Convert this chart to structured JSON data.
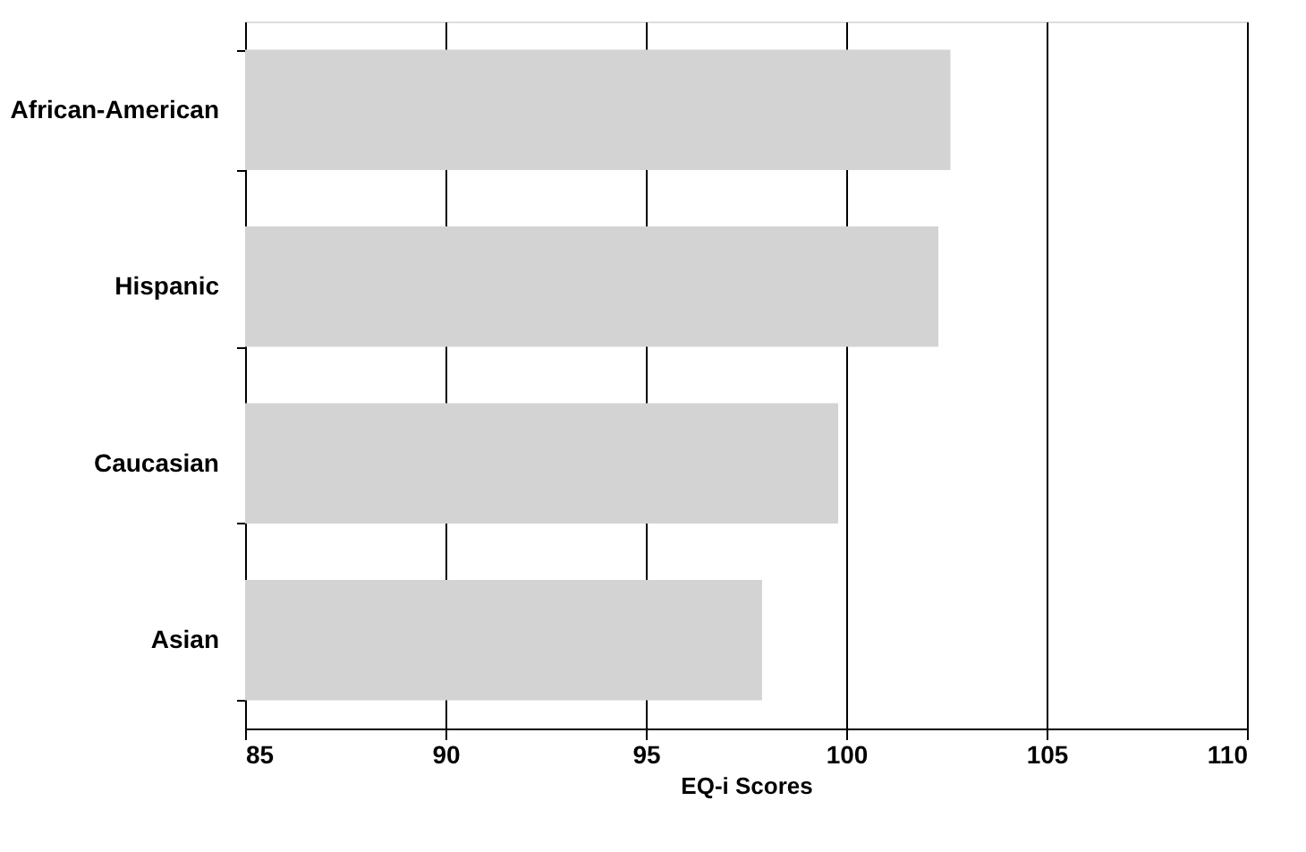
{
  "chart_data": {
    "type": "bar",
    "orientation": "horizontal",
    "xlabel": "EQ-i Scores",
    "categories": [
      "African-American",
      "Hispanic",
      "Caucasian",
      "Asian"
    ],
    "values": [
      102.6,
      102.3,
      99.8,
      97.9
    ],
    "color": "#d3d3d3",
    "xlim": [
      85,
      110
    ],
    "xticks": [
      85,
      90,
      95,
      100,
      105,
      110
    ],
    "grid": "x"
  }
}
